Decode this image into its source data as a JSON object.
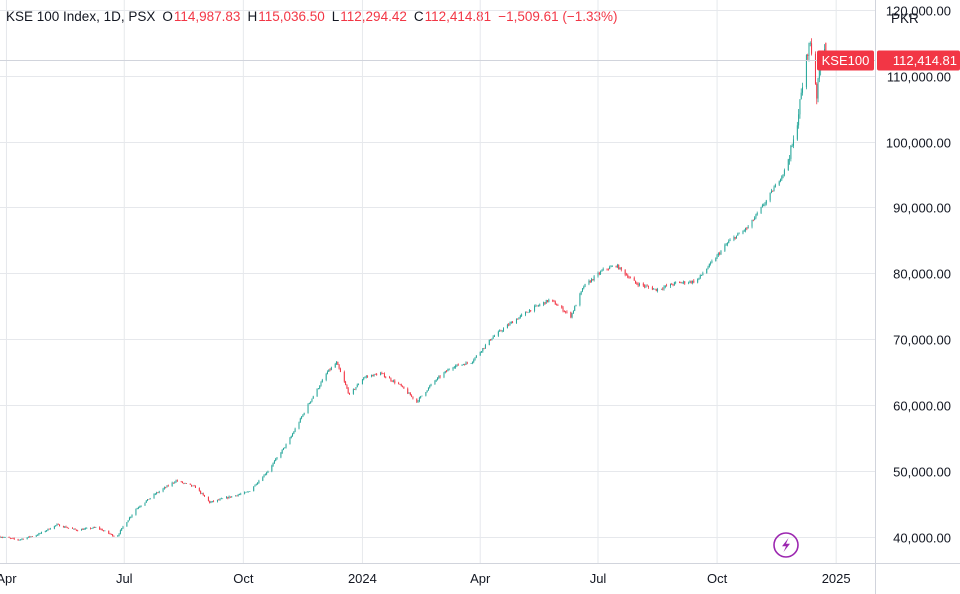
{
  "legend": {
    "symbol": "KSE 100 Index, 1D, PSX",
    "open_label": "O",
    "open": "114,987.83",
    "high_label": "H",
    "high": "115,036.50",
    "low_label": "L",
    "low": "112,294.42",
    "close_label": "C",
    "close": "112,414.81",
    "change": "−1,509.61 (−1.33%)"
  },
  "currency": "PKR",
  "price_tag": {
    "label": "KSE100",
    "value": "112,414.81",
    "color": "#f23645"
  },
  "colors": {
    "up": "#26a69a",
    "down": "#f23645",
    "grid": "#e6e8ec",
    "axis_line": "#d1d4dc"
  },
  "icons": {
    "bottom_right": "lightning-icon"
  },
  "chart_data": {
    "type": "candlestick",
    "interval": "1D",
    "y_ticks": [
      "40,000.00",
      "50,000.00",
      "60,000.00",
      "70,000.00",
      "80,000.00",
      "90,000.00",
      "100,000.00",
      "110,000.00",
      "120,000.00"
    ],
    "y_tick_values": [
      40000,
      50000,
      60000,
      70000,
      80000,
      90000,
      100000,
      110000,
      120000
    ],
    "x_ticks": [
      "Apr",
      "Jul",
      "Oct",
      "2024",
      "Apr",
      "Jul",
      "Oct",
      "2025"
    ],
    "x_tick_dates": [
      "2023-04-01",
      "2023-07-01",
      "2023-10-01",
      "2024-01-01",
      "2024-04-01",
      "2024-07-01",
      "2024-10-01",
      "2025-01-01"
    ],
    "x_range": [
      "2023-03-27",
      "2025-01-31"
    ],
    "ylim": [
      36000,
      121500
    ],
    "last_close": 112414.81,
    "path_points": [
      [
        "2023-03-27",
        40000
      ],
      [
        "2023-04-10",
        39500
      ],
      [
        "2023-04-25",
        40300
      ],
      [
        "2023-05-10",
        41800
      ],
      [
        "2023-05-25",
        41000
      ],
      [
        "2023-06-10",
        41400
      ],
      [
        "2023-06-25",
        39900
      ],
      [
        "2023-06-30",
        41500
      ],
      [
        "2023-07-10",
        44200
      ],
      [
        "2023-07-25",
        46500
      ],
      [
        "2023-08-10",
        48500
      ],
      [
        "2023-08-25",
        47500
      ],
      [
        "2023-09-05",
        45200
      ],
      [
        "2023-09-20",
        46000
      ],
      [
        "2023-10-05",
        46800
      ],
      [
        "2023-10-20",
        50000
      ],
      [
        "2023-11-05",
        54500
      ],
      [
        "2023-11-20",
        60000
      ],
      [
        "2023-12-05",
        65000
      ],
      [
        "2023-12-12",
        66400
      ],
      [
        "2023-12-22",
        61500
      ],
      [
        "2024-01-02",
        64200
      ],
      [
        "2024-01-15",
        64800
      ],
      [
        "2024-01-30",
        63000
      ],
      [
        "2024-02-12",
        60500
      ],
      [
        "2024-02-25",
        63500
      ],
      [
        "2024-03-10",
        65800
      ],
      [
        "2024-03-25",
        66500
      ],
      [
        "2024-04-10",
        70200
      ],
      [
        "2024-04-25",
        72500
      ],
      [
        "2024-05-10",
        74500
      ],
      [
        "2024-05-25",
        76000
      ],
      [
        "2024-06-10",
        73500
      ],
      [
        "2024-06-20",
        78000
      ],
      [
        "2024-07-05",
        80500
      ],
      [
        "2024-07-15",
        81200
      ],
      [
        "2024-07-30",
        78500
      ],
      [
        "2024-08-15",
        77500
      ],
      [
        "2024-08-30",
        78500
      ],
      [
        "2024-09-15",
        78800
      ],
      [
        "2024-09-25",
        81200
      ],
      [
        "2024-10-10",
        84800
      ],
      [
        "2024-10-25",
        87000
      ],
      [
        "2024-11-08",
        91000
      ],
      [
        "2024-11-22",
        95500
      ],
      [
        "2024-11-30",
        100500
      ],
      [
        "2024-12-06",
        108500
      ],
      [
        "2024-12-10",
        113800
      ],
      [
        "2024-12-12",
        115000
      ],
      [
        "2024-12-15",
        111000
      ],
      [
        "2024-12-17",
        107000
      ],
      [
        "2024-12-20",
        112500
      ],
      [
        "2024-12-23",
        114400
      ],
      [
        "2024-12-24",
        112414.81
      ]
    ]
  }
}
